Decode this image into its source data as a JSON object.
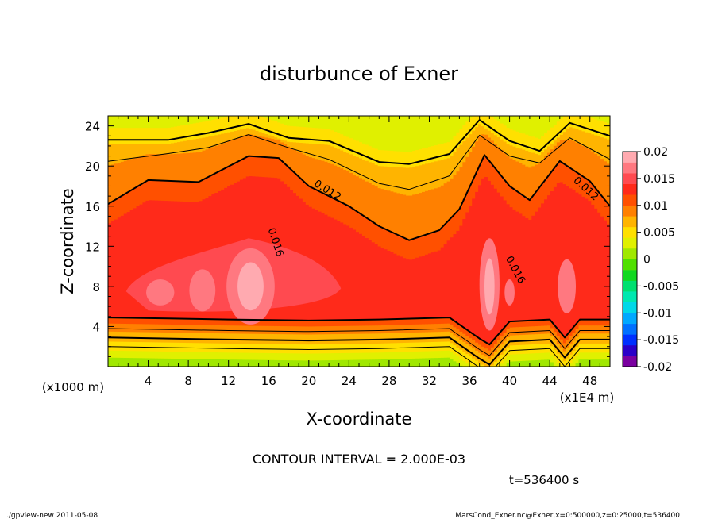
{
  "chart_data": {
    "type": "heatmap",
    "title": "disturbunce of Exner",
    "xlabel": "X-coordinate",
    "ylabel": "Z-coordinate",
    "x_unit": "(x1000 m)",
    "x_scale_note": "(x1E4 m)",
    "xlim": [
      0,
      50
    ],
    "ylim": [
      0,
      25
    ],
    "x_ticks": [
      "4",
      "8",
      "12",
      "16",
      "20",
      "24",
      "28",
      "32",
      "36",
      "40",
      "44",
      "48"
    ],
    "y_ticks": [
      "4",
      "8",
      "12",
      "16",
      "20",
      "24"
    ],
    "colorbar": {
      "ticks": [
        "0.02",
        "0.015",
        "0.01",
        "0.005",
        "0",
        "-0.005",
        "-0.01",
        "-0.015",
        "-0.02"
      ],
      "range": [
        -0.02,
        0.02
      ],
      "colors": [
        "#7a00a0",
        "#2a00c8",
        "#0030ff",
        "#0070ff",
        "#00a8ff",
        "#00d8e8",
        "#00e8b0",
        "#00e070",
        "#10d820",
        "#50e000",
        "#a0e800",
        "#e0f000",
        "#ffe000",
        "#ffb400",
        "#ff8000",
        "#ff5000",
        "#ff2a1a",
        "#ff4a50",
        "#ff7880",
        "#ffaab0"
      ]
    },
    "contour_labels": [
      "0.012",
      "0.016",
      "0.016",
      "0.012"
    ],
    "contour_interval": "CONTOUR INTERVAL = 2.000E-03",
    "time": "t=536400 s"
  },
  "footer": {
    "left": "./gpview-new   2011-05-08",
    "right": "MarsCond_Exner.nc@Exner,x=0:500000,z=0:25000,t=536400"
  }
}
